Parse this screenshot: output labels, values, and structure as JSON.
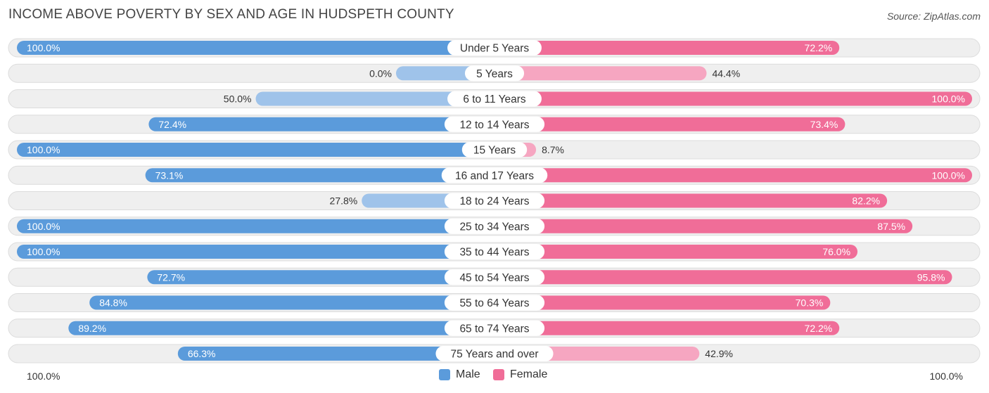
{
  "header": {
    "title": "INCOME ABOVE POVERTY BY SEX AND AGE IN HUDSPETH COUNTY",
    "source": "Source: ZipAtlas.com"
  },
  "colors": {
    "male_strong": "#5b9bdb",
    "male_light": "#9fc3ea",
    "female_strong": "#f06d98",
    "female_light": "#f6a6c1",
    "row_bg": "#efefef",
    "row_border": "#dcdcdc"
  },
  "chart_data": {
    "type": "bar",
    "orientation": "horizontal-diverging",
    "title": "INCOME ABOVE POVERTY BY SEX AND AGE IN HUDSPETH COUNTY",
    "categories": [
      "Under 5 Years",
      "5 Years",
      "6 to 11 Years",
      "12 to 14 Years",
      "15 Years",
      "16 and 17 Years",
      "18 to 24 Years",
      "25 to 34 Years",
      "35 to 44 Years",
      "45 to 54 Years",
      "55 to 64 Years",
      "65 to 74 Years",
      "75 Years and over"
    ],
    "series": [
      {
        "name": "Male",
        "values": [
          100.0,
          0.0,
          50.0,
          72.4,
          100.0,
          73.1,
          27.8,
          100.0,
          100.0,
          72.7,
          84.8,
          89.2,
          66.3
        ],
        "labels": [
          "100.0%",
          "0.0%",
          "50.0%",
          "72.4%",
          "100.0%",
          "73.1%",
          "27.8%",
          "100.0%",
          "100.0%",
          "72.7%",
          "84.8%",
          "89.2%",
          "66.3%"
        ]
      },
      {
        "name": "Female",
        "values": [
          72.2,
          44.4,
          100.0,
          73.4,
          8.7,
          100.0,
          82.2,
          87.5,
          76.0,
          95.8,
          70.3,
          72.2,
          42.9
        ],
        "labels": [
          "72.2%",
          "44.4%",
          "100.0%",
          "73.4%",
          "8.7%",
          "100.0%",
          "82.2%",
          "87.5%",
          "76.0%",
          "95.8%",
          "70.3%",
          "72.2%",
          "42.9%"
        ]
      }
    ],
    "xlim": [
      0,
      100
    ],
    "axis_left_label": "100.0%",
    "axis_right_label": "100.0%",
    "legend": [
      "Male",
      "Female"
    ],
    "legend_position": "bottom-center"
  }
}
